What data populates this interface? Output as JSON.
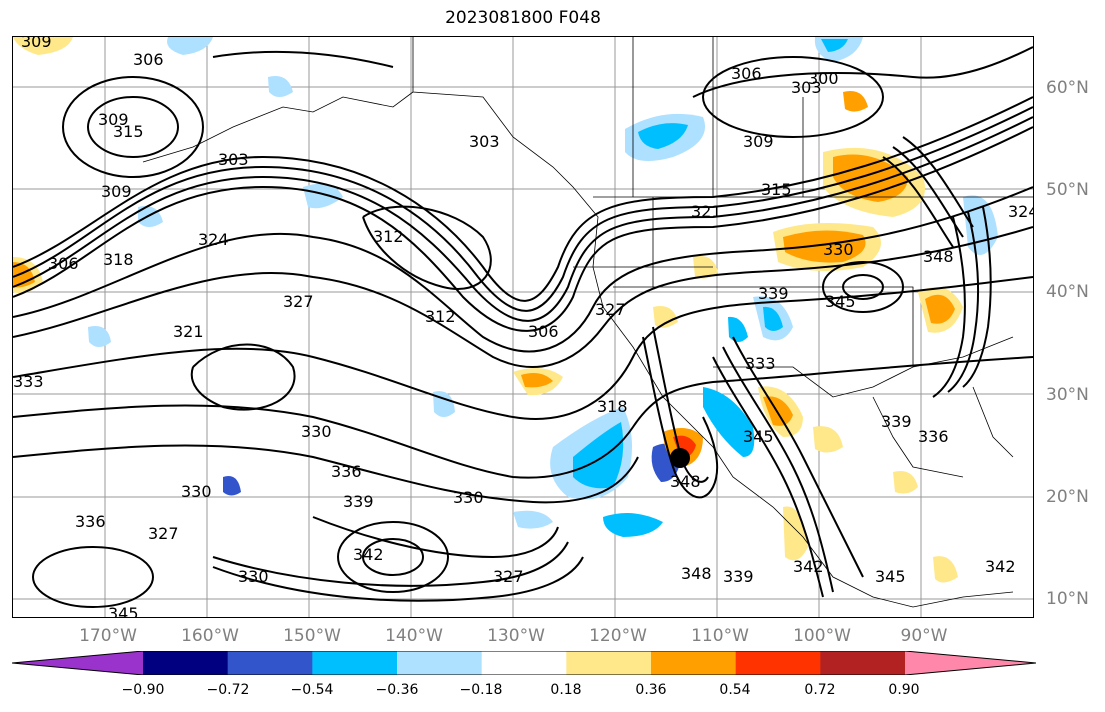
{
  "title": "2023081800 F048",
  "lat_labels": [
    "60°N",
    "50°N",
    "40°N",
    "30°N",
    "20°N",
    "10°N"
  ],
  "lon_labels": [
    "170°W",
    "160°W",
    "150°W",
    "140°W",
    "130°W",
    "120°W",
    "110°W",
    "100°W",
    "90°W"
  ],
  "colorbar": {
    "ticks": [
      "−0.90",
      "−0.72",
      "−0.54",
      "−0.36",
      "−0.18",
      "0.18",
      "0.36",
      "0.54",
      "0.72",
      "0.90"
    ],
    "colors": [
      "#9933cc",
      "#000080",
      "#3355cc",
      "#00bfff",
      "#aee0ff",
      "#ffffff",
      "#ffe88a",
      "#ffa000",
      "#ff3300",
      "#b22222",
      "#ff88aa"
    ]
  },
  "contour_labels": [
    "309",
    "306",
    "309",
    "315",
    "303",
    "306",
    "309",
    "318",
    "324",
    "312",
    "303",
    "327",
    "312",
    "321",
    "306",
    "333",
    "330",
    "336",
    "330",
    "318",
    "339",
    "330",
    "327",
    "348",
    "342",
    "330",
    "336",
    "345",
    "327",
    "348",
    "339",
    "342",
    "345",
    "306",
    "303",
    "300",
    "309",
    "315",
    "321",
    "330",
    "339",
    "345",
    "348",
    "333",
    "339",
    "336",
    "345",
    "342",
    "327",
    "324"
  ]
}
